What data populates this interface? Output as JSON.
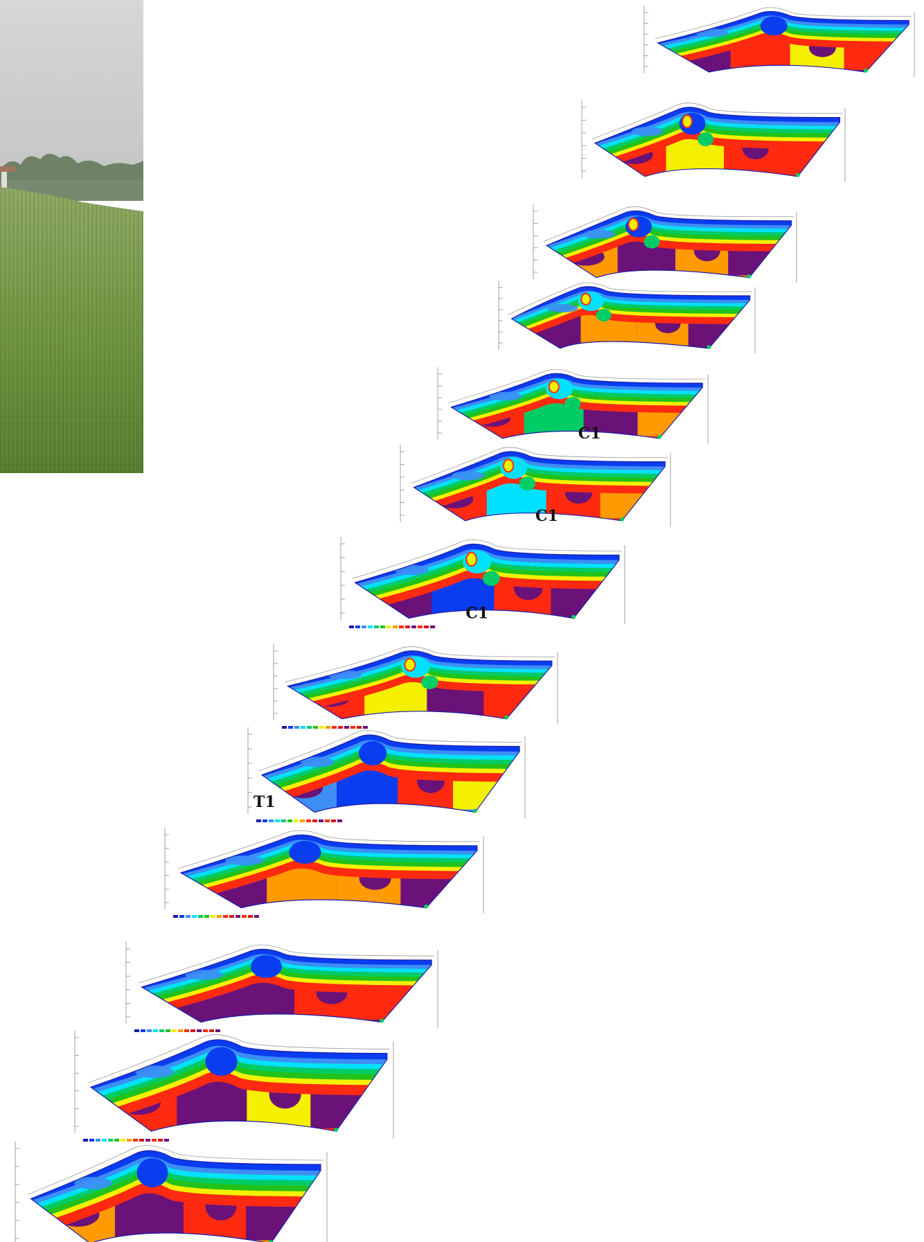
{
  "photo": {
    "sky": "#cfd2d1",
    "far_trees": "#5d7452",
    "grass_light": "#8ba85a",
    "grass_dark": "#4f6e2c"
  },
  "palette": [
    "#1b1ba8",
    "#0a3cf0",
    "#3d8ef5",
    "#00e1ff",
    "#00cc66",
    "#22c21a",
    "#f5f000",
    "#ff9a00",
    "#ff2a10",
    "#d11a1a",
    "#6b1278"
  ],
  "sections": [
    {
      "id": "s1",
      "label": ""
    },
    {
      "id": "s2",
      "label": ""
    },
    {
      "id": "s3",
      "label": ""
    },
    {
      "id": "s4",
      "label": ""
    },
    {
      "id": "s5",
      "label": "C1"
    },
    {
      "id": "s6",
      "label": "C1"
    },
    {
      "id": "s7",
      "label": "C1"
    },
    {
      "id": "s8",
      "label": ""
    },
    {
      "id": "s9",
      "label": "T1"
    },
    {
      "id": "s10",
      "label": ""
    },
    {
      "id": "s11",
      "label": ""
    },
    {
      "id": "s12",
      "label": ""
    },
    {
      "id": "s13",
      "label": ""
    }
  ]
}
